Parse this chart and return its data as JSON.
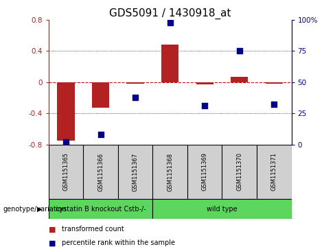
{
  "title": "GDS5091 / 1430918_at",
  "samples": [
    "GSM1151365",
    "GSM1151366",
    "GSM1151367",
    "GSM1151368",
    "GSM1151369",
    "GSM1151370",
    "GSM1151371"
  ],
  "transformed_count": [
    -0.75,
    -0.33,
    -0.02,
    0.48,
    -0.03,
    0.07,
    -0.02
  ],
  "percentile_rank": [
    2,
    8,
    38,
    98,
    31,
    75,
    32
  ],
  "bar_color": "#b22222",
  "dot_color": "#00008b",
  "zero_line_color": "#cc0000",
  "grid_color": "#222222",
  "ylim_left": [
    -0.8,
    0.8
  ],
  "ylim_right": [
    0,
    100
  ],
  "yticks_left": [
    -0.8,
    -0.4,
    0.0,
    0.4,
    0.8
  ],
  "ytick_labels_left": [
    "-0.8",
    "-0.4",
    "0",
    "0.4",
    "0.8"
  ],
  "yticks_right": [
    0,
    25,
    50,
    75,
    100
  ],
  "ytick_labels_right": [
    "0",
    "25",
    "50",
    "75",
    "100%"
  ],
  "group1_label": "cystatin B knockout Cstb-/-",
  "group1_count": 3,
  "group2_label": "wild type",
  "group2_count": 4,
  "group_color": "#5cd65c",
  "genotype_label": "genotype/variation",
  "legend_red_label": "transformed count",
  "legend_blue_label": "percentile rank within the sample",
  "bar_width": 0.5,
  "dot_size": 40,
  "title_fontsize": 11,
  "tick_fontsize": 7.5,
  "sample_fontsize": 6,
  "group_fontsize": 7,
  "legend_fontsize": 7,
  "genotype_fontsize": 7
}
